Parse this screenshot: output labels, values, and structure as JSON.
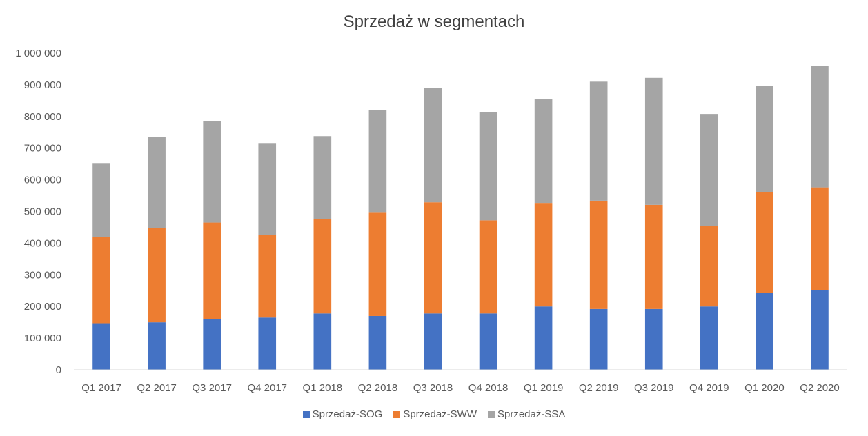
{
  "chart_data": {
    "type": "bar",
    "stacked": true,
    "title": "Sprzedaż w segmentach",
    "categories": [
      "Q1 2017",
      "Q2 2017",
      "Q3 2017",
      "Q4 2017",
      "Q1 2018",
      "Q2 2018",
      "Q3 2018",
      "Q4 2018",
      "Q1 2019",
      "Q2 2019",
      "Q3 2019",
      "Q4 2019",
      "Q1 2020",
      "Q2 2020"
    ],
    "series": [
      {
        "name": "Sprzedaż-SOG",
        "color": "#4472C4",
        "values": [
          147000,
          150000,
          160000,
          165000,
          178000,
          170000,
          178000,
          178000,
          200000,
          192000,
          192000,
          200000,
          243000,
          252000
        ]
      },
      {
        "name": "Sprzedaż-SWW",
        "color": "#ED7D31",
        "values": [
          273000,
          297000,
          305000,
          262000,
          297000,
          326000,
          351000,
          294000,
          327000,
          342000,
          329000,
          255000,
          318000,
          324000
        ]
      },
      {
        "name": "Sprzedaż-SSA",
        "color": "#A5A5A5",
        "values": [
          233000,
          289000,
          321000,
          287000,
          263000,
          325000,
          360000,
          342000,
          327000,
          376000,
          401000,
          353000,
          336000,
          384000
        ]
      }
    ],
    "ylim": [
      0,
      1000000
    ],
    "yticks": [
      "0",
      "100 000",
      "200 000",
      "300 000",
      "400 000",
      "500 000",
      "600 000",
      "700 000",
      "800 000",
      "900 000",
      "1 000 000"
    ],
    "grid": false,
    "legend_position": "bottom"
  }
}
